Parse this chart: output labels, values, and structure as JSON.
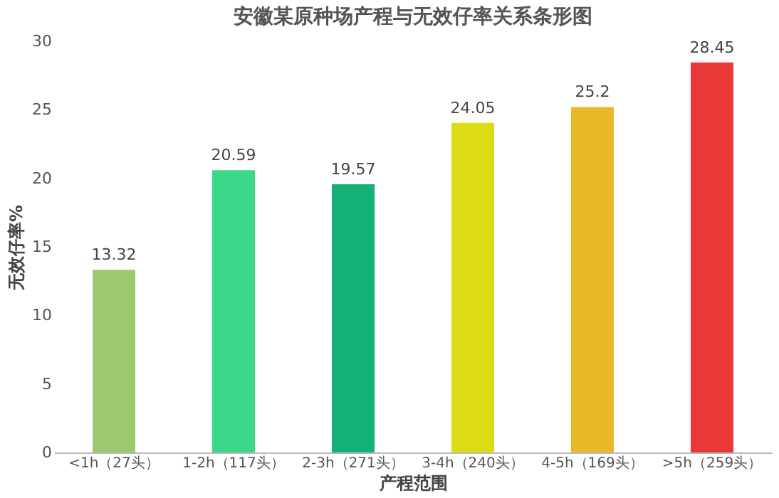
{
  "chart_data": {
    "type": "bar",
    "title": "安徽某原种场产程与无效仔率关系条形图",
    "xlabel": "产程范围",
    "ylabel": "无效仔率%",
    "categories": [
      "<1h（27头）",
      "1-2h（117头）",
      "2-3h（271头）",
      "3-4h（240头）",
      "4-5h（169头）",
      ">5h（259头）"
    ],
    "values": [
      13.32,
      20.59,
      19.57,
      24.05,
      25.2,
      28.45
    ],
    "colors": [
      "#9cc870",
      "#3ad888",
      "#14b076",
      "#dcdc14",
      "#e8b828",
      "#e83838"
    ],
    "ylim": [
      0,
      30
    ],
    "yticks": [
      0,
      5,
      10,
      15,
      20,
      25,
      30
    ],
    "grid": false,
    "data_labels": true
  }
}
